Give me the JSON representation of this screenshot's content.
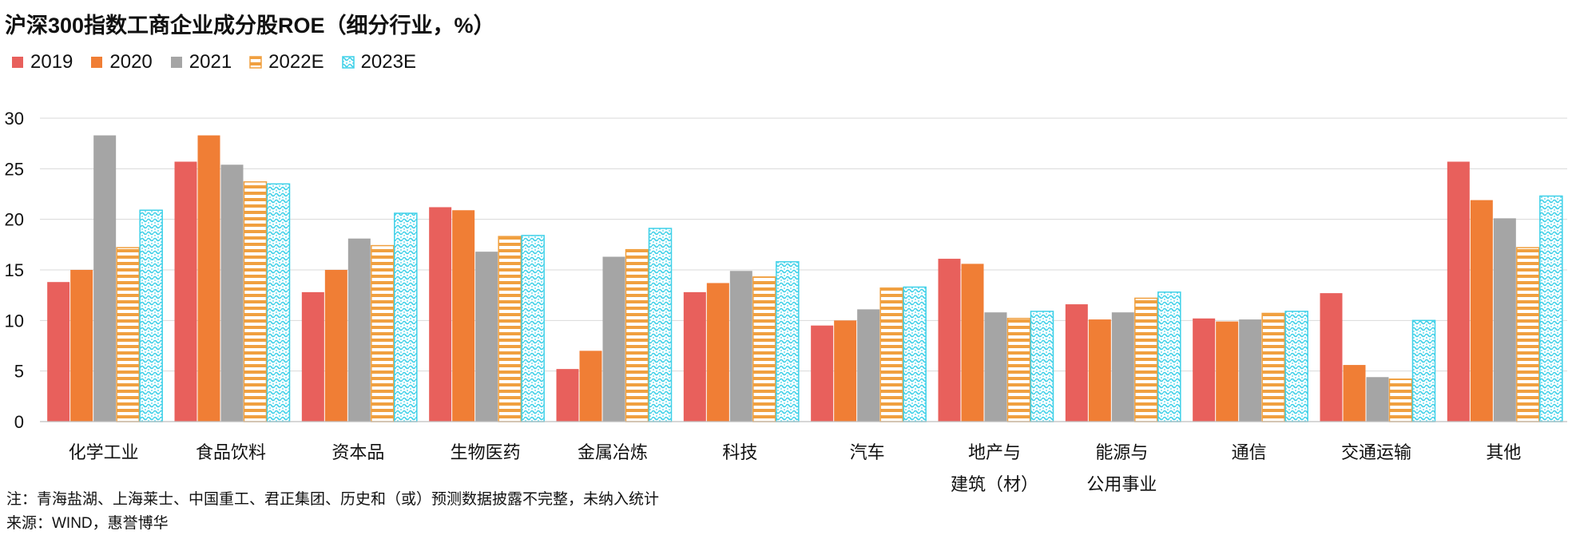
{
  "title": "沪深300指数工商企业成分股ROE（细分行业，%）",
  "note": "注：青海盐湖、上海莱士、中国重工、君正集团、历史和（或）预测数据披露不完整，未纳入统计",
  "source": "来源：WIND，惠誉博华",
  "chart_data": {
    "type": "bar",
    "title": "沪深300指数工商企业成分股ROE（细分行业，%）",
    "categories": [
      [
        "化学工业"
      ],
      [
        "食品饮料"
      ],
      [
        "资本品"
      ],
      [
        "生物医药"
      ],
      [
        "金属冶炼"
      ],
      [
        "科技"
      ],
      [
        "汽车"
      ],
      [
        "地产与",
        "建筑（材）"
      ],
      [
        "能源与",
        "公用事业"
      ],
      [
        "通信"
      ],
      [
        "交通运输"
      ],
      [
        "其他"
      ]
    ],
    "ylim": [
      0,
      30
    ],
    "yticks": [
      0,
      5,
      10,
      15,
      20,
      25,
      30
    ],
    "grid": true,
    "legend_position": "top-left",
    "series": [
      {
        "name": "2019",
        "color": "#E8605C",
        "pattern": "solid",
        "values": [
          13.8,
          25.7,
          12.8,
          21.2,
          5.2,
          12.8,
          9.5,
          16.1,
          11.6,
          10.2,
          12.7,
          25.7
        ]
      },
      {
        "name": "2020",
        "color": "#F07E35",
        "pattern": "solid",
        "values": [
          15.0,
          28.3,
          15.0,
          20.9,
          7.0,
          13.7,
          10.0,
          15.6,
          10.1,
          9.9,
          5.6,
          21.9
        ]
      },
      {
        "name": "2021",
        "color": "#A5A5A5",
        "pattern": "solid",
        "values": [
          28.3,
          25.4,
          18.1,
          16.8,
          16.3,
          14.9,
          11.1,
          10.8,
          10.8,
          10.1,
          4.4,
          20.1
        ]
      },
      {
        "name": "2022E",
        "color": "#F0A040",
        "pattern": "stripes",
        "values": [
          17.2,
          23.7,
          17.4,
          18.3,
          17.0,
          14.3,
          13.2,
          10.2,
          12.2,
          10.7,
          4.2,
          17.2
        ]
      },
      {
        "name": "2023E",
        "color": "#3DD0E8",
        "pattern": "dots",
        "values": [
          20.9,
          23.5,
          20.6,
          18.4,
          19.1,
          15.8,
          13.3,
          10.9,
          12.8,
          10.9,
          10.0,
          22.3
        ]
      }
    ]
  }
}
